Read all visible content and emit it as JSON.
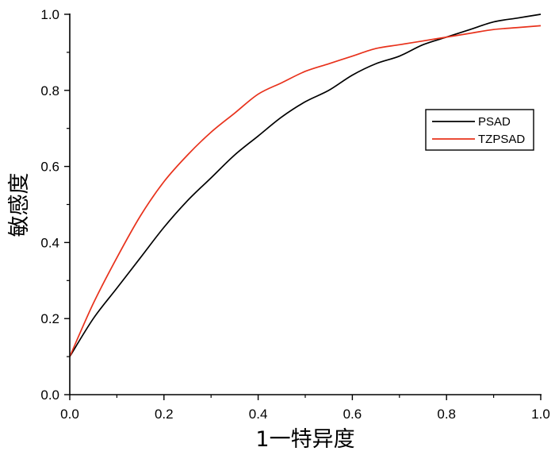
{
  "chart_data": {
    "type": "line",
    "title": "",
    "xlabel": "1一特异度",
    "ylabel": "敏感度",
    "xlim": [
      0.0,
      1.0
    ],
    "ylim": [
      0.0,
      1.0
    ],
    "x_ticks": [
      "0.0",
      "0.2",
      "0.4",
      "0.6",
      "0.8",
      "1.0"
    ],
    "y_ticks": [
      "0.0",
      "0.2",
      "0.4",
      "0.6",
      "0.8",
      "1.0"
    ],
    "grid": false,
    "legend_position": "right",
    "series": [
      {
        "name": "PSAD",
        "color": "#000000",
        "x": [
          0.0,
          0.05,
          0.1,
          0.15,
          0.2,
          0.25,
          0.3,
          0.35,
          0.4,
          0.45,
          0.5,
          0.55,
          0.6,
          0.65,
          0.7,
          0.75,
          0.8,
          0.85,
          0.9,
          0.95,
          1.0
        ],
        "y": [
          0.1,
          0.2,
          0.28,
          0.36,
          0.44,
          0.51,
          0.57,
          0.63,
          0.68,
          0.73,
          0.77,
          0.8,
          0.84,
          0.87,
          0.89,
          0.92,
          0.94,
          0.96,
          0.98,
          0.99,
          1.0
        ]
      },
      {
        "name": "TZPSAD",
        "color": "#e8321c",
        "x": [
          0.0,
          0.05,
          0.1,
          0.15,
          0.2,
          0.25,
          0.3,
          0.35,
          0.4,
          0.45,
          0.5,
          0.55,
          0.6,
          0.65,
          0.7,
          0.75,
          0.8,
          0.85,
          0.9,
          0.95,
          1.0
        ],
        "y": [
          0.1,
          0.24,
          0.36,
          0.47,
          0.56,
          0.63,
          0.69,
          0.74,
          0.79,
          0.82,
          0.85,
          0.87,
          0.89,
          0.91,
          0.92,
          0.93,
          0.94,
          0.95,
          0.96,
          0.965,
          0.97
        ]
      }
    ]
  }
}
